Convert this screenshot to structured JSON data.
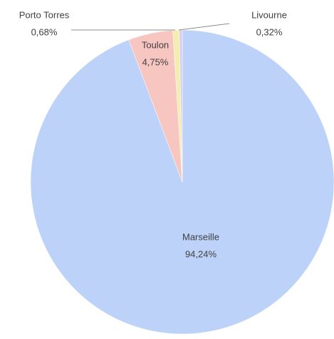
{
  "chart_data": {
    "type": "pie",
    "categories": [
      "Marseille",
      "Toulon",
      "Porto Torres",
      "Livourne"
    ],
    "values": [
      94.24,
      4.75,
      0.68,
      0.32
    ],
    "value_labels": [
      "94,24%",
      "4,75%",
      "0,68%",
      "0,32%"
    ],
    "colors": [
      "#bcd2f8",
      "#f8c6c1",
      "#f3eeb0",
      "#d8cdf1"
    ]
  }
}
